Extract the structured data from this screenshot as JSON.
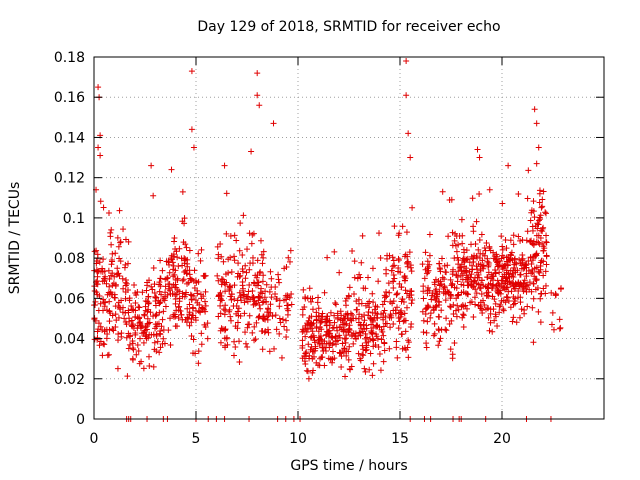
{
  "chart_data": {
    "type": "scatter",
    "title": "Day 129 of 2018, SRMTID for receiver echo",
    "xlabel": "GPS time / hours",
    "ylabel": "SRMTID / TECUs",
    "xlim": [
      0,
      25
    ],
    "ylim": [
      0,
      0.18
    ],
    "xticks": [
      0,
      5,
      10,
      15,
      20
    ],
    "xtick_labels": [
      "0",
      "5",
      "10",
      "15",
      "20"
    ],
    "yticks": [
      0,
      0.02,
      0.04,
      0.06,
      0.08,
      0.1,
      0.12,
      0.14,
      0.16,
      0.18
    ],
    "ytick_labels": [
      "0",
      "0.02",
      "0.04",
      "0.06",
      "0.08",
      "0.1",
      "0.12",
      "0.14",
      "0.16",
      "0.18"
    ],
    "grid": true,
    "marker": "+",
    "marker_color": "#e00000",
    "seed": 129,
    "segments": [
      {
        "x0": 0.0,
        "x1": 1.7,
        "base": 0.06,
        "spread": 0.02,
        "n": 160
      },
      {
        "x0": 1.7,
        "x1": 2.6,
        "base": 0.045,
        "spread": 0.012,
        "n": 70
      },
      {
        "x0": 2.6,
        "x1": 3.5,
        "base": 0.05,
        "spread": 0.016,
        "n": 80
      },
      {
        "x0": 3.5,
        "x1": 4.7,
        "base": 0.065,
        "spread": 0.018,
        "n": 110
      },
      {
        "x0": 4.7,
        "x1": 5.6,
        "base": 0.055,
        "spread": 0.016,
        "n": 60
      },
      {
        "x0": 6.0,
        "x1": 7.0,
        "base": 0.06,
        "spread": 0.018,
        "n": 80
      },
      {
        "x0": 7.0,
        "x1": 8.3,
        "base": 0.062,
        "spread": 0.02,
        "n": 110
      },
      {
        "x0": 8.3,
        "x1": 9.7,
        "base": 0.055,
        "spread": 0.016,
        "n": 70
      },
      {
        "x0": 10.2,
        "x1": 12.0,
        "base": 0.042,
        "spread": 0.012,
        "n": 170
      },
      {
        "x0": 12.0,
        "x1": 14.3,
        "base": 0.045,
        "spread": 0.013,
        "n": 200
      },
      {
        "x0": 14.3,
        "x1": 15.6,
        "base": 0.06,
        "spread": 0.018,
        "n": 110
      },
      {
        "x0": 16.1,
        "x1": 17.7,
        "base": 0.062,
        "spread": 0.016,
        "n": 130
      },
      {
        "x0": 17.7,
        "x1": 19.2,
        "base": 0.072,
        "spread": 0.016,
        "n": 150
      },
      {
        "x0": 19.2,
        "x1": 21.2,
        "base": 0.07,
        "spread": 0.013,
        "n": 230
      },
      {
        "x0": 21.2,
        "x1": 22.2,
        "base": 0.08,
        "spread": 0.02,
        "n": 110
      },
      {
        "x0": 22.4,
        "x1": 22.9,
        "base": 0.05,
        "spread": 0.012,
        "n": 12
      }
    ],
    "outliers": [
      {
        "x": 0.2,
        "y": 0.165
      },
      {
        "x": 0.25,
        "y": 0.16
      },
      {
        "x": 0.3,
        "y": 0.141
      },
      {
        "x": 0.2,
        "y": 0.135
      },
      {
        "x": 0.3,
        "y": 0.131
      },
      {
        "x": 0.1,
        "y": 0.114
      },
      {
        "x": 4.8,
        "y": 0.173
      },
      {
        "x": 4.8,
        "y": 0.144
      },
      {
        "x": 4.9,
        "y": 0.135
      },
      {
        "x": 8.0,
        "y": 0.172
      },
      {
        "x": 8.0,
        "y": 0.161
      },
      {
        "x": 8.1,
        "y": 0.156
      },
      {
        "x": 8.8,
        "y": 0.147
      },
      {
        "x": 15.3,
        "y": 0.178
      },
      {
        "x": 15.3,
        "y": 0.161
      },
      {
        "x": 15.4,
        "y": 0.142
      },
      {
        "x": 15.5,
        "y": 0.13
      },
      {
        "x": 18.8,
        "y": 0.134
      },
      {
        "x": 18.9,
        "y": 0.13
      },
      {
        "x": 21.6,
        "y": 0.154
      },
      {
        "x": 21.7,
        "y": 0.147
      },
      {
        "x": 21.8,
        "y": 0.135
      },
      {
        "x": 21.7,
        "y": 0.127
      },
      {
        "x": 3.8,
        "y": 0.124
      },
      {
        "x": 7.7,
        "y": 0.133
      },
      {
        "x": 6.4,
        "y": 0.126
      },
      {
        "x": 2.8,
        "y": 0.126
      },
      {
        "x": 2.9,
        "y": 0.111
      },
      {
        "x": 19.4,
        "y": 0.114
      },
      {
        "x": 20.3,
        "y": 0.126
      }
    ],
    "zero_x": [
      1.6,
      1.7,
      1.8,
      2.6,
      3.4,
      3.6,
      5.0,
      5.6,
      6.0,
      6.4,
      7.6,
      9.0,
      9.4,
      9.8,
      10.1,
      15.5,
      16.2,
      16.5,
      17.6,
      17.9,
      18.0,
      19.2,
      21.2,
      22.4
    ]
  }
}
